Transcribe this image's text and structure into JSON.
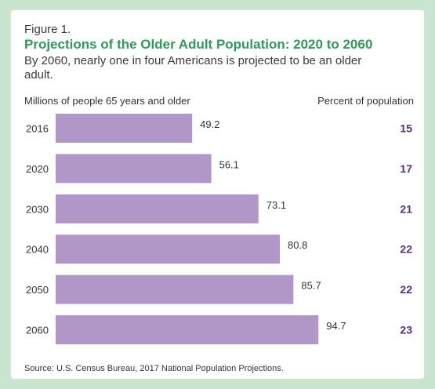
{
  "figure_label": "Figure 1.",
  "title": "Projections of the Older Adult Population: 2020 to 2060",
  "subtitle": "By 2060, nearly one in four Americans is projected to be an older adult.",
  "source": "Source: U.S. Census Bureau, 2017 National Population Projections.",
  "colors": {
    "background": "#c9e4cf",
    "bar": "#b097c7",
    "title": "#2f9a5a",
    "percent": "#5a2d82"
  },
  "chart_data": {
    "type": "bar",
    "orientation": "horizontal",
    "ylabel": "Millions of people 65 years and older",
    "categories": [
      "2016",
      "2020",
      "2030",
      "2040",
      "2050",
      "2060"
    ],
    "values": [
      49.2,
      56.1,
      73.1,
      80.8,
      85.7,
      94.7
    ],
    "value_labels": [
      "49.2",
      "56.1",
      "73.1",
      "80.8",
      "85.7",
      "94.7"
    ],
    "percent_header": "Percent of population",
    "percent_labels": [
      "15",
      "17",
      "21",
      "22",
      "22",
      "23"
    ],
    "grid": false,
    "legend": "none"
  }
}
